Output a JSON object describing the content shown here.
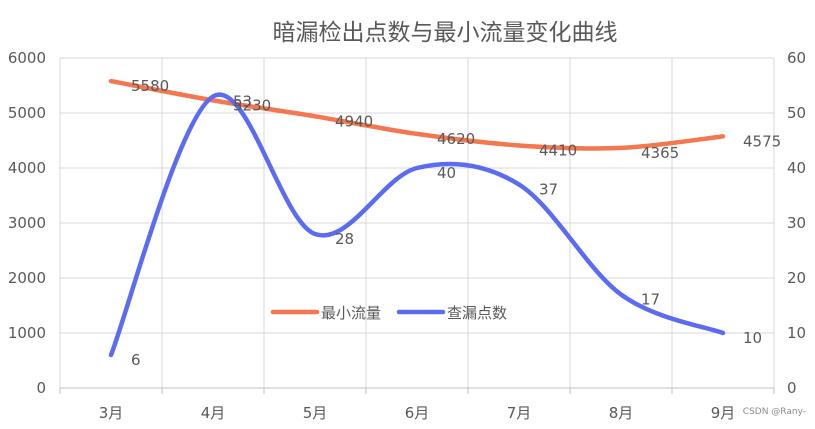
{
  "chart_data": {
    "type": "line",
    "title": "暗漏检出点数与最小流量变化曲线",
    "categories": [
      "3月",
      "4月",
      "5月",
      "6月",
      "7月",
      "8月",
      "9月"
    ],
    "series": [
      {
        "name": "最小流量",
        "axis": "left",
        "color": "#F4774F",
        "values": [
          5580,
          5230,
          4940,
          4620,
          4410,
          4365,
          4575
        ],
        "labels": [
          "5580",
          "5230",
          "4940",
          "4620",
          "4410",
          "4365",
          "4575"
        ]
      },
      {
        "name": "查漏点数",
        "axis": "right",
        "color": "#5B6CF2",
        "values": [
          6,
          53,
          28,
          40,
          37,
          17,
          10
        ],
        "labels": [
          "6",
          "53",
          "28",
          "40",
          "37",
          "17",
          "10"
        ]
      }
    ],
    "y_left": {
      "min": 0,
      "max": 6000,
      "ticks": [
        "0",
        "1000",
        "2000",
        "3000",
        "4000",
        "5000",
        "6000"
      ]
    },
    "y_right": {
      "min": 0,
      "max": 60,
      "ticks": [
        "0",
        "10",
        "20",
        "30",
        "40",
        "50",
        "60"
      ]
    },
    "grid": true,
    "legend_position": "center"
  },
  "watermark": "CSDN @Rany-"
}
